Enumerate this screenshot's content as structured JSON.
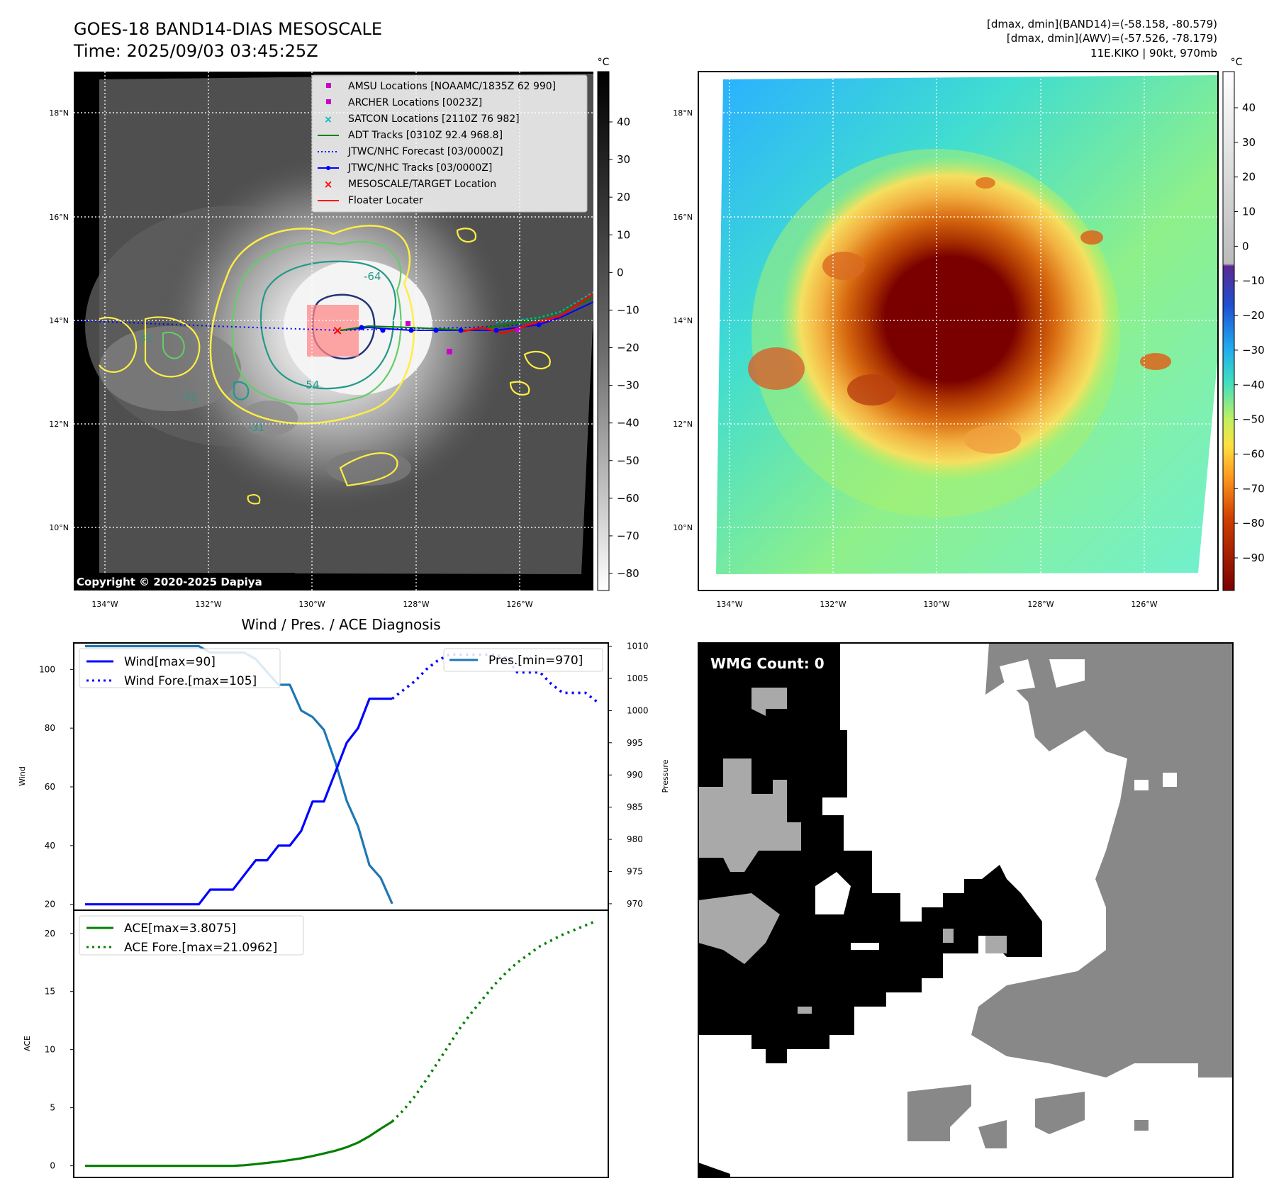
{
  "header": {
    "title_line1": "GOES-18 BAND14-DIAS MESOSCALE",
    "title_line2": "Time: 2025/09/03 03:45:25Z",
    "info_line1": "[dmax, dmin](BAND14)=(-58.158, -80.579)",
    "info_line2": "[dmax, dmin](AWV)=(-57.526, -78.179)",
    "info_line3": "11E.KIKO | 90kt, 970mb"
  },
  "colors": {
    "wind": "#0000ff",
    "pressure": "#1f77b4",
    "ace": "#008000",
    "contour_yellow": "#ffee44",
    "contour_green": "#66cc66",
    "contour_teal": "#229988",
    "contour_navy": "#223377",
    "amsu": "#cc00cc",
    "satcon": "#00bbbb",
    "track_red": "#ff0000"
  },
  "map": {
    "lon_labels": [
      "134°W",
      "132°W",
      "130°W",
      "128°W",
      "126°W"
    ],
    "lat_labels": [
      "18°N",
      "16°N",
      "14°N",
      "12°N",
      "10°N"
    ],
    "unit": "°C",
    "copyright": "Copyright © 2020-2025 Dapiya",
    "colorbar_left_ticks": [
      "40",
      "30",
      "20",
      "10",
      "0",
      "−10",
      "−20",
      "−30",
      "−40",
      "−50",
      "−60",
      "−70",
      "−80"
    ],
    "colorbar_right_ticks": [
      "40",
      "30",
      "20",
      "10",
      "0",
      "−10",
      "−20",
      "−30",
      "−40",
      "−50",
      "−60",
      "−70",
      "−80",
      "−90"
    ],
    "contour_labels": [
      "-64",
      "-54",
      "-31",
      "-31",
      "-31"
    ],
    "legend": [
      {
        "label": "AMSU Locations [NOAAMC/1835Z 62 990]",
        "marker": "square"
      },
      {
        "label": "ARCHER Locations [0023Z]",
        "marker": "square"
      },
      {
        "label": "SATCON Locations [2110Z 76 982]",
        "marker": "x"
      },
      {
        "label": "ADT Tracks [0310Z 92.4 968.8]",
        "marker": "line"
      },
      {
        "label": "JTWC/NHC Forecast [03/0000Z]",
        "marker": "dotted"
      },
      {
        "label": "JTWC/NHC Tracks [03/0000Z]",
        "marker": "line-dot"
      },
      {
        "label": "MESOSCALE/TARGET Location",
        "marker": "x"
      },
      {
        "label": "Floater Locater",
        "marker": "line"
      }
    ]
  },
  "diagnosis": {
    "title": "Wind / Pres. / ACE Diagnosis",
    "wind_axis_label": "Wind",
    "pressure_axis_label": "Pressure",
    "ace_axis_label": "ACE",
    "legend_wind": "Wind[max=90]",
    "legend_wind_fore": "Wind Fore.[max=105]",
    "legend_pres": "Pres.[min=970]",
    "legend_ace": "ACE[max=3.8075]",
    "legend_ace_fore": "ACE Fore.[max=21.0962]"
  },
  "wmg": {
    "label": "WMG Count: 0"
  },
  "chart_data": [
    {
      "type": "line",
      "title": "Wind / Pres. / ACE Diagnosis",
      "ylabel": "Wind",
      "ylim": [
        18,
        109
      ],
      "yticks": [
        20,
        40,
        60,
        80,
        100
      ],
      "xlim": [
        -1,
        46
      ],
      "series": [
        {
          "name": "Wind[max=90]",
          "style": "solid",
          "x": [
            0,
            1,
            2,
            3,
            4,
            5,
            6,
            7,
            8,
            9,
            10,
            11,
            12,
            13,
            14,
            15,
            16,
            17,
            18,
            19,
            20,
            21,
            22,
            23,
            24,
            25,
            26,
            27
          ],
          "values": [
            20,
            20,
            20,
            20,
            20,
            20,
            20,
            20,
            20,
            20,
            20,
            25,
            25,
            25,
            30,
            35,
            35,
            40,
            40,
            45,
            55,
            55,
            65,
            75,
            80,
            90,
            90,
            90
          ]
        },
        {
          "name": "Wind Fore.[max=105]",
          "style": "dotted",
          "x": [
            27,
            28,
            29,
            30,
            31,
            32,
            33,
            34,
            35,
            36,
            37,
            38,
            39,
            40,
            41,
            42,
            43,
            44,
            45
          ],
          "values": [
            90,
            93,
            96,
            100,
            103,
            105,
            105,
            105,
            105,
            105,
            104,
            99,
            99,
            99,
            95,
            92,
            92,
            92,
            89
          ]
        }
      ]
    },
    {
      "type": "line",
      "ylabel": "Pressure",
      "ylim": [
        969,
        1010.5
      ],
      "yticks": [
        970,
        975,
        980,
        985,
        990,
        995,
        1000,
        1005,
        1010
      ],
      "series": [
        {
          "name": "Pres.[min=970]",
          "style": "solid",
          "x": [
            0,
            1,
            2,
            3,
            4,
            5,
            6,
            7,
            8,
            9,
            10,
            11,
            12,
            13,
            14,
            15,
            16,
            17,
            18,
            19,
            20,
            21,
            22,
            23,
            24,
            25,
            26,
            27
          ],
          "values": [
            1010,
            1010,
            1010,
            1010,
            1010,
            1010,
            1010,
            1010,
            1010,
            1010,
            1010,
            1009,
            1009,
            1009,
            1009,
            1008,
            1006,
            1004,
            1004,
            1000,
            999,
            997,
            992,
            986,
            982,
            976,
            974,
            970
          ]
        }
      ]
    },
    {
      "type": "line",
      "ylabel": "ACE",
      "ylim": [
        -1,
        22
      ],
      "yticks": [
        0,
        5,
        10,
        15,
        20
      ],
      "series": [
        {
          "name": "ACE[max=3.8075]",
          "style": "solid",
          "x": [
            0,
            13,
            14,
            15,
            16,
            17,
            18,
            19,
            20,
            21,
            22,
            23,
            24,
            25,
            26,
            27
          ],
          "values": [
            0,
            0,
            0.05,
            0.15,
            0.25,
            0.36,
            0.5,
            0.65,
            0.84,
            1.06,
            1.3,
            1.6,
            2.0,
            2.55,
            3.2,
            3.8075
          ]
        },
        {
          "name": "ACE Fore.[max=21.0962]",
          "style": "dotted",
          "x": [
            27,
            28,
            29,
            30,
            31,
            32,
            33,
            34,
            35,
            36,
            37,
            38,
            39,
            40,
            41,
            42,
            43,
            44,
            45
          ],
          "values": [
            3.8075,
            4.8,
            6.0,
            7.4,
            8.9,
            10.4,
            11.9,
            13.2,
            14.4,
            15.6,
            16.6,
            17.5,
            18.2,
            18.9,
            19.4,
            19.9,
            20.3,
            20.7,
            21.0962
          ]
        }
      ]
    }
  ]
}
